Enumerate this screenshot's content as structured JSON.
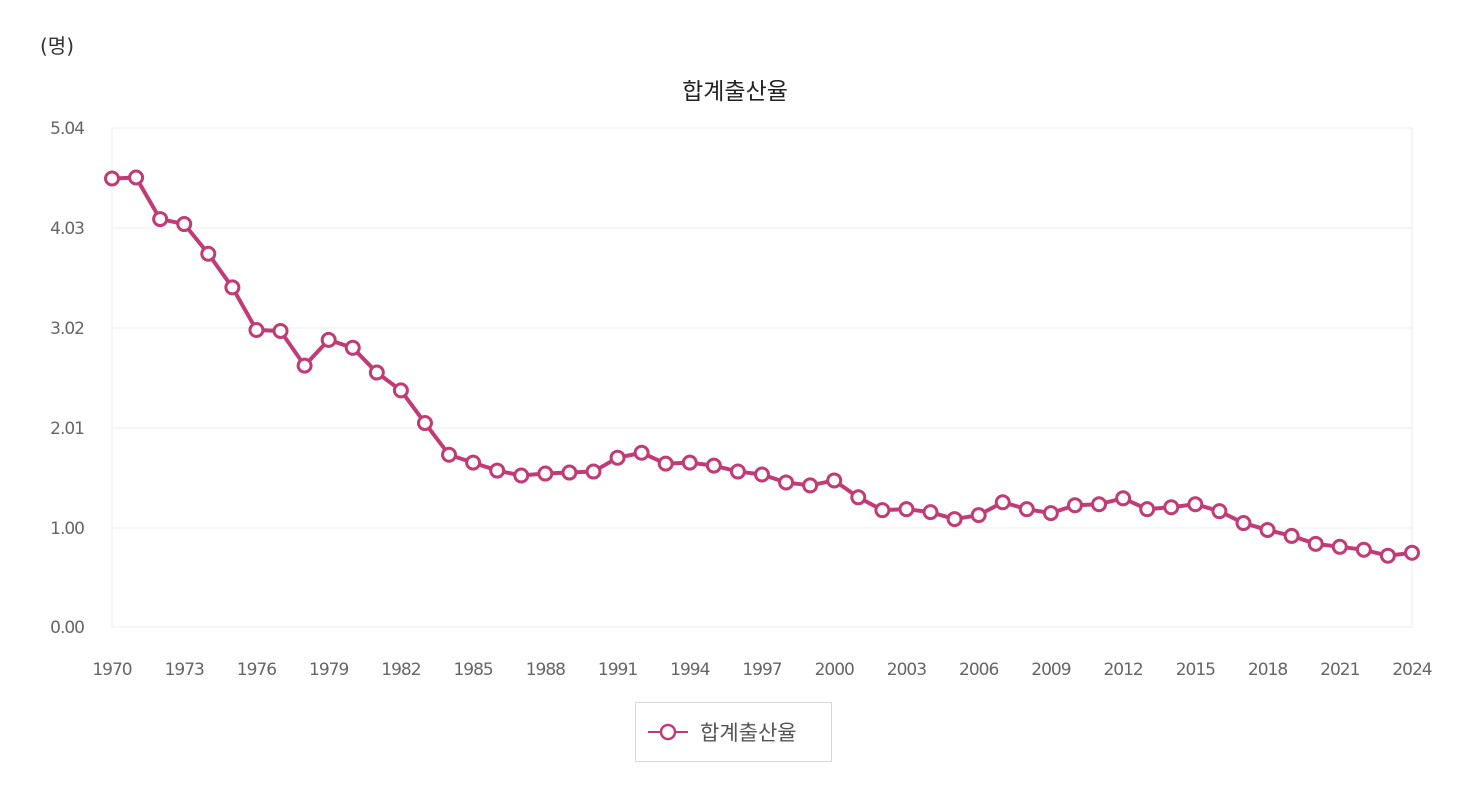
{
  "unit_label": "(명)",
  "chart_data": {
    "type": "line",
    "title": "합계출산율",
    "ylabel": "(명)",
    "xlabel": "",
    "ylim": [
      0,
      5.04
    ],
    "yticks": [
      "0.00",
      "1.00",
      "2.01",
      "3.02",
      "4.03",
      "5.04"
    ],
    "xticks": [
      "1970",
      "1973",
      "1976",
      "1979",
      "1982",
      "1985",
      "1988",
      "1991",
      "1994",
      "1997",
      "2000",
      "2003",
      "2006",
      "2009",
      "2012",
      "2015",
      "2018",
      "2021",
      "2024"
    ],
    "x": [
      1970,
      1971,
      1972,
      1973,
      1974,
      1975,
      1976,
      1977,
      1978,
      1979,
      1980,
      1981,
      1982,
      1983,
      1984,
      1985,
      1986,
      1987,
      1988,
      1989,
      1990,
      1991,
      1992,
      1993,
      1994,
      1995,
      1996,
      1997,
      1998,
      1999,
      2000,
      2001,
      2002,
      2003,
      2004,
      2005,
      2006,
      2007,
      2008,
      2009,
      2010,
      2011,
      2012,
      2013,
      2014,
      2015,
      2016,
      2017,
      2018,
      2019,
      2020,
      2021,
      2022,
      2023,
      2024
    ],
    "series": [
      {
        "name": "합계출산율",
        "color": "#c13b76",
        "values": [
          4.53,
          4.54,
          4.12,
          4.07,
          3.77,
          3.43,
          3.0,
          2.99,
          2.64,
          2.9,
          2.82,
          2.57,
          2.39,
          2.06,
          1.74,
          1.66,
          1.58,
          1.53,
          1.55,
          1.56,
          1.57,
          1.71,
          1.76,
          1.65,
          1.66,
          1.63,
          1.57,
          1.54,
          1.46,
          1.43,
          1.48,
          1.31,
          1.18,
          1.19,
          1.16,
          1.09,
          1.13,
          1.26,
          1.19,
          1.15,
          1.23,
          1.24,
          1.3,
          1.19,
          1.21,
          1.24,
          1.17,
          1.05,
          0.98,
          0.92,
          0.84,
          0.81,
          0.78,
          0.72,
          0.75
        ]
      }
    ],
    "grid": true,
    "legend_position": "bottom-center"
  }
}
